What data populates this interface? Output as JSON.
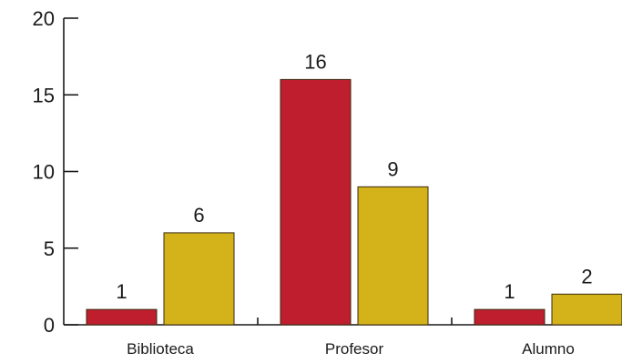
{
  "chart_data": {
    "type": "bar",
    "categories": [
      "Biblioteca",
      "Profesor",
      "Alumno"
    ],
    "series": [
      {
        "values": [
          1,
          16,
          1
        ],
        "color": "#be1e2d"
      },
      {
        "values": [
          6,
          9,
          2
        ],
        "color": "#d4b21a"
      }
    ],
    "ylim": [
      0,
      20
    ],
    "yticks": [
      0,
      5,
      10,
      15,
      20
    ],
    "title": "",
    "xlabel": "",
    "ylabel": "",
    "grid": false,
    "legend": "none"
  }
}
